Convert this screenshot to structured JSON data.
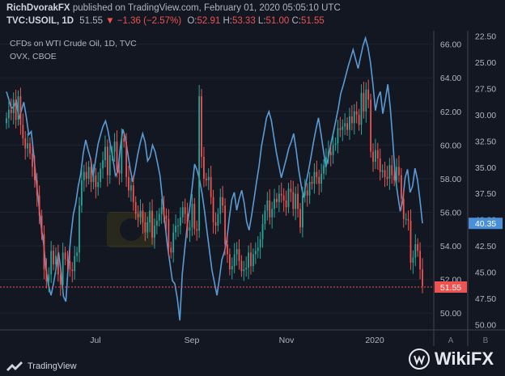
{
  "header": {
    "author": "RichDvorakFX",
    "published_text": "published on TradingView.com, February 01, 2020 05:05:10 UTC",
    "symbol": "TVC:USOIL, 1D",
    "last": "51.55",
    "change": "▼ −1.36 (−2.57%)",
    "o_label": "O:",
    "o_val": "52.91",
    "h_label": "H:",
    "h_val": "53.33",
    "l_label": "L:",
    "l_val": "51.00",
    "c_label": "C:",
    "c_val": "51.55"
  },
  "legend": {
    "series_a": "CFDs on WTI Crude Oil, 1D, TVC",
    "series_b": "OVX, CBOE"
  },
  "footer": {
    "brand": "TradingView",
    "watermark": "WikiFX"
  },
  "colors": {
    "background": "#131722",
    "grid": "#1f2433",
    "up": "#26a69a",
    "down": "#ef5350",
    "ovx_line": "#5b9bd5",
    "axis_text": "#b2b5be",
    "price_tag": "#ef5350",
    "ovx_tag": "#4a90d9"
  },
  "chart_data": {
    "type": "line",
    "x_ticks": [
      "Jul",
      "Sep",
      "Nov",
      "2020"
    ],
    "y_left_ticks": [
      "66.00",
      "64.00",
      "62.00",
      "60.00",
      "58.00",
      "56.00",
      "54.00",
      "52.00",
      "50.00"
    ],
    "y_left_range": [
      49.0,
      66.8
    ],
    "y_right_ticks": [
      "22.50",
      "25.00",
      "27.50",
      "30.00",
      "32.50",
      "35.00",
      "37.50",
      "40.00",
      "42.50",
      "45.00",
      "47.50",
      "50.00"
    ],
    "y_right_range": [
      22.0,
      50.5
    ],
    "scale_labels": [
      "A",
      "B"
    ],
    "last_price_label": "51.55",
    "ovx_last_label": "40.35",
    "oil_close": [
      61.6,
      62.1,
      61.9,
      62.7,
      61.5,
      62.9,
      61.2,
      60.4,
      59.8,
      60.1,
      59.5,
      58.7,
      57.9,
      57.0,
      55.8,
      54.7,
      52.6,
      51.9,
      52.3,
      53.7,
      52.9,
      53.4,
      52.3,
      51.7,
      53.6,
      53.2,
      53.1,
      52.6,
      52.5,
      53.4,
      53.6,
      56.4,
      57.9,
      58.4,
      58.0,
      58.7,
      57.8,
      58.2,
      57.5,
      57.8,
      58.6,
      59.1,
      59.9,
      58.2,
      59.4,
      59.6,
      60.2,
      58.5,
      58.3,
      60.4,
      60.2,
      58.1,
      57.3,
      57.6,
      56.6,
      55.9,
      55.7,
      56.1,
      55.4,
      54.8,
      55.4,
      56.1,
      54.5,
      55.2,
      55.5,
      55.9,
      56.3,
      55.8,
      55.6,
      53.9,
      53.6,
      54.8,
      55.2,
      55.2,
      55.7,
      56.3,
      55.9,
      54.9,
      55.1,
      56.5,
      55.0,
      54.9,
      62.9,
      59.3,
      58.0,
      57.9,
      58.1,
      56.9,
      55.4,
      55.2,
      55.9,
      56.9,
      56.4,
      54.1,
      53.5,
      52.6,
      52.8,
      53.5,
      53.8,
      53.1,
      52.5,
      52.6,
      52.7,
      53.6,
      52.8,
      53.5,
      53.7,
      53.9,
      54.4,
      55.3,
      56.1,
      56.7,
      55.7,
      56.2,
      56.8,
      56.6,
      57.1,
      57.0,
      56.7,
      56.3,
      57.4,
      57.2,
      56.2,
      57.1,
      56.2,
      55.1,
      57.0,
      57.3,
      57.0,
      57.8,
      57.7,
      58.4,
      58.1,
      57.7,
      58.3,
      58.8,
      59.3,
      59.6,
      59.4,
      60.0,
      60.1,
      61.0,
      60.9,
      61.1,
      61.3,
      60.9,
      61.7,
      61.3,
      62.0,
      61.8,
      61.2,
      63.1,
      62.0,
      63.3,
      62.7,
      59.6,
      59.0,
      59.7,
      59.2,
      58.4,
      58.5,
      58.1,
      58.0,
      58.8,
      58.2,
      57.9,
      58.7,
      58.2,
      56.8,
      55.6,
      55.6,
      55.5,
      53.0,
      53.3,
      54.1,
      53.7,
      52.6,
      51.6
    ],
    "ovx": [
      27.8,
      28.6,
      29.4,
      29.2,
      28.7,
      30.4,
      29.6,
      28.8,
      30.2,
      31.9,
      31.6,
      33.8,
      36.3,
      38.4,
      40.6,
      42.3,
      44.8,
      46.3,
      47.2,
      46.1,
      44.7,
      43.1,
      44.9,
      47.3,
      47.8,
      44.2,
      41.6,
      39.5,
      38.4,
      36.8,
      35.6,
      33.7,
      32.4,
      33.4,
      34.2,
      35.9,
      34.3,
      32.8,
      31.9,
      31.1,
      30.6,
      31.5,
      32.9,
      34.2,
      35.8,
      35.4,
      33.1,
      31.4,
      32.2,
      33.7,
      35.2,
      36.4,
      35.2,
      33.8,
      32.7,
      31.8,
      32.6,
      34.4,
      34.0,
      32.9,
      33.5,
      34.6,
      35.8,
      38.1,
      40.3,
      42.5,
      44.1,
      45.8,
      46.1,
      47.5,
      49.6,
      45.2,
      42.8,
      40.6,
      38.9,
      36.9,
      34.7,
      35.3,
      36.2,
      37.5,
      39.2,
      41.1,
      43.0,
      44.8,
      46.0,
      47.2,
      45.6,
      43.8,
      43.1,
      41.9,
      39.8,
      38.1,
      37.4,
      39.1,
      38.0,
      37.2,
      38.4,
      40.2,
      41.0,
      39.6,
      38.0,
      36.4,
      34.9,
      33.0,
      31.7,
      30.3,
      29.7,
      30.6,
      32.1,
      33.6,
      34.8,
      36.0,
      35.1,
      34.2,
      33.2,
      32.6,
      31.8,
      33.4,
      35.2,
      36.7,
      37.9,
      36.5,
      35.3,
      34.0,
      32.6,
      31.4,
      30.3,
      31.8,
      33.4,
      35.0,
      34.1,
      32.8,
      31.7,
      30.6,
      29.4,
      28.0,
      27.2,
      26.3,
      25.4,
      24.6,
      23.8,
      24.7,
      25.6,
      24.5,
      23.4,
      22.7,
      23.6,
      25.0,
      27.1,
      29.6,
      28.4,
      27.8,
      29.9,
      28.6,
      27.1,
      29.3,
      32.4,
      35.8,
      37.6,
      39.2,
      38.3,
      36.0,
      35.2,
      37.4,
      36.8,
      35.1,
      36.2,
      38.1,
      40.35
    ]
  }
}
